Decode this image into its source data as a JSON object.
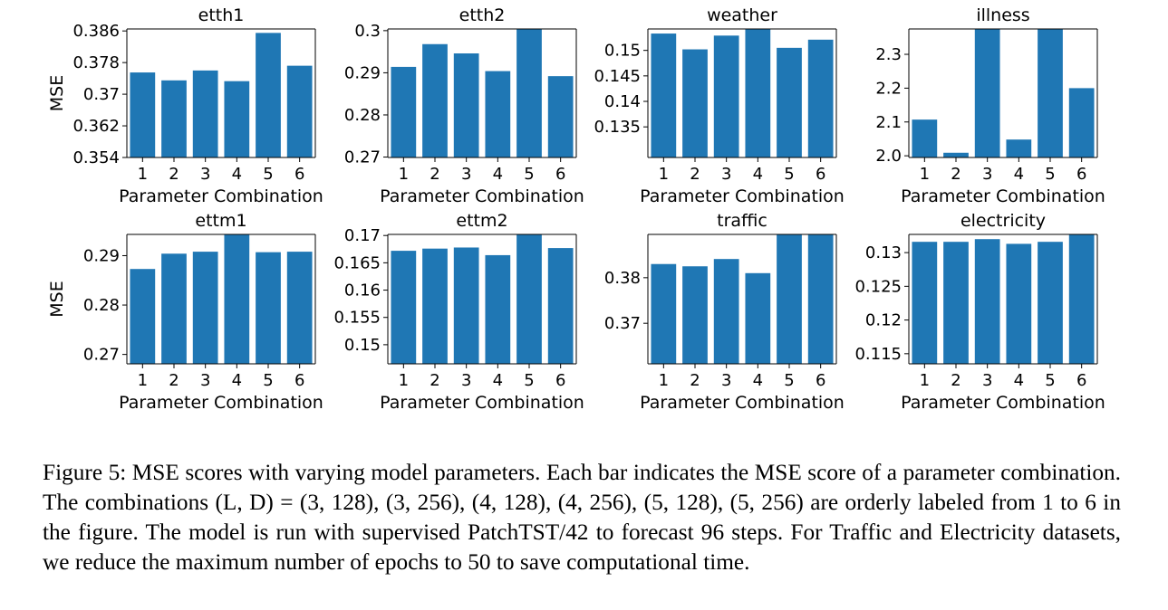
{
  "chart_data": [
    {
      "type": "bar",
      "title": "etth1",
      "categories": [
        "1",
        "2",
        "3",
        "4",
        "5",
        "6"
      ],
      "values": [
        0.3755,
        0.3735,
        0.376,
        0.3733,
        0.3855,
        0.3772
      ],
      "ylim": [
        0.354,
        0.3865
      ],
      "yticks": [
        0.354,
        0.362,
        0.37,
        0.378,
        0.386
      ],
      "ytick_labels": [
        "0.354",
        "0.362",
        "0.37",
        "0.378",
        "0.386"
      ],
      "xlabel": "Parameter Combination",
      "ylabel": "MSE",
      "color": "#1f77b4"
    },
    {
      "type": "bar",
      "title": "etth2",
      "categories": [
        "1",
        "2",
        "3",
        "4",
        "5",
        "6"
      ],
      "values": [
        0.2914,
        0.2968,
        0.2946,
        0.2904,
        0.3004,
        0.2892
      ],
      "ylim": [
        0.2699,
        0.3004
      ],
      "yticks": [
        0.27,
        0.28,
        0.29,
        0.3
      ],
      "ytick_labels": [
        "0.27",
        "0.28",
        "0.29",
        "0.3"
      ],
      "xlabel": "Parameter Combination",
      "ylabel": "",
      "color": "#1f77b4"
    },
    {
      "type": "bar",
      "title": "weather",
      "categories": [
        "1",
        "2",
        "3",
        "4",
        "5",
        "6"
      ],
      "values": [
        0.1533,
        0.1502,
        0.1529,
        0.1542,
        0.1505,
        0.1521
      ],
      "ylim": [
        0.129,
        0.1542
      ],
      "yticks": [
        0.135,
        0.14,
        0.145,
        0.15
      ],
      "ytick_labels": [
        "0.135",
        "0.14",
        "0.145",
        "0.15"
      ],
      "xlabel": "Parameter Combination",
      "ylabel": "",
      "color": "#1f77b4"
    },
    {
      "type": "bar",
      "title": "illness",
      "categories": [
        "1",
        "2",
        "3",
        "4",
        "5",
        "6"
      ],
      "values": [
        2.107,
        2.009,
        2.375,
        2.048,
        2.375,
        2.2
      ],
      "ylim": [
        1.995,
        2.375
      ],
      "yticks": [
        2.0,
        2.1,
        2.2,
        2.3
      ],
      "ytick_labels": [
        "2.0",
        "2.1",
        "2.2",
        "2.3"
      ],
      "xlabel": "Parameter Combination",
      "ylabel": "",
      "color": "#1f77b4"
    },
    {
      "type": "bar",
      "title": "ettm1",
      "categories": [
        "1",
        "2",
        "3",
        "4",
        "5",
        "6"
      ],
      "values": [
        0.2873,
        0.2904,
        0.2908,
        0.2943,
        0.2907,
        0.2908
      ],
      "ylim": [
        0.2681,
        0.2943
      ],
      "yticks": [
        0.27,
        0.28,
        0.29
      ],
      "ytick_labels": [
        "0.27",
        "0.28",
        "0.29"
      ],
      "xlabel": "Parameter Combination",
      "ylabel": "MSE",
      "color": "#1f77b4"
    },
    {
      "type": "bar",
      "title": "ettm2",
      "categories": [
        "1",
        "2",
        "3",
        "4",
        "5",
        "6"
      ],
      "values": [
        0.1672,
        0.1676,
        0.1678,
        0.1664,
        0.1702,
        0.1677
      ],
      "ylim": [
        0.1465,
        0.1702
      ],
      "yticks": [
        0.15,
        0.155,
        0.16,
        0.165,
        0.17
      ],
      "ytick_labels": [
        "0.15",
        "0.155",
        "0.16",
        "0.165",
        "0.17"
      ],
      "xlabel": "Parameter Combination",
      "ylabel": "",
      "color": "#1f77b4"
    },
    {
      "type": "bar",
      "title": "traffic",
      "categories": [
        "1",
        "2",
        "3",
        "4",
        "5",
        "6"
      ],
      "values": [
        0.383,
        0.3825,
        0.3841,
        0.381,
        0.3895,
        0.3895
      ],
      "ylim": [
        0.3611,
        0.3895
      ],
      "yticks": [
        0.37,
        0.38
      ],
      "ytick_labels": [
        "0.37",
        "0.38"
      ],
      "xlabel": "Parameter Combination",
      "ylabel": "",
      "color": "#1f77b4"
    },
    {
      "type": "bar",
      "title": "electricity",
      "categories": [
        "1",
        "2",
        "3",
        "4",
        "5",
        "6"
      ],
      "values": [
        0.1316,
        0.1316,
        0.132,
        0.1313,
        0.1316,
        0.1327
      ],
      "ylim": [
        0.1135,
        0.1327
      ],
      "yticks": [
        0.115,
        0.12,
        0.125,
        0.13
      ],
      "ytick_labels": [
        "0.115",
        "0.12",
        "0.125",
        "0.13"
      ],
      "xlabel": "Parameter Combination",
      "ylabel": "",
      "color": "#1f77b4"
    }
  ],
  "caption": {
    "full": "Figure 5: MSE scores with varying model parameters. Each bar indicates the MSE score of a parameter combination. The combinations (L, D) = (3, 128), (3, 256), (4, 128), (4, 256), (5, 128), (5, 256) are orderly labeled from 1 to 6 in the figure. The model is run with supervised PatchTST/42 to forecast 96 steps. For Traffic and Electricity datasets, we reduce the maximum number of epochs to 50 to save computational time."
  }
}
